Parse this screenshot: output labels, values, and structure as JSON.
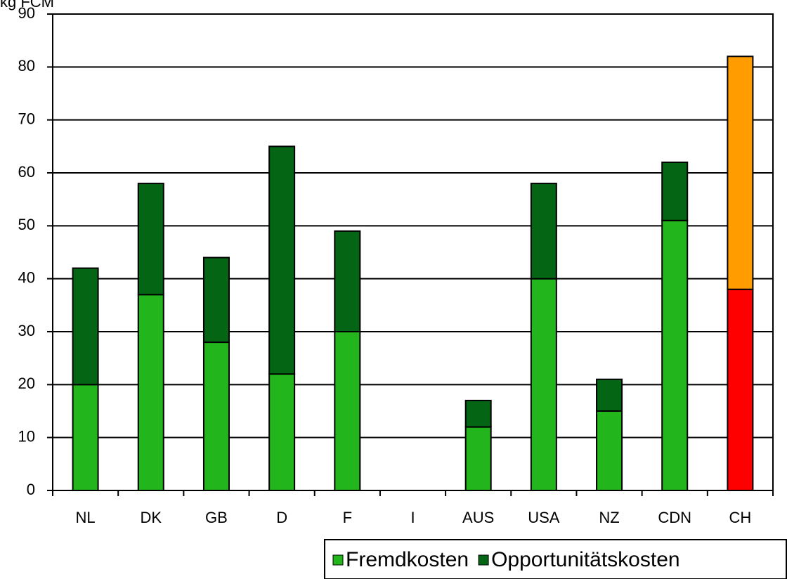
{
  "chart_data": {
    "type": "stacked_bar",
    "y_label": "kg FCM",
    "categories": [
      "NL",
      "DK",
      "GB",
      "D",
      "F",
      "I",
      "AUS",
      "USA",
      "NZ",
      "CDN",
      "CH"
    ],
    "series": [
      {
        "name": "Fremdkosten",
        "color": "#22b51c",
        "colors": [
          "#22b51c",
          "#22b51c",
          "#22b51c",
          "#22b51c",
          "#22b51c",
          "#22b51c",
          "#22b51c",
          "#22b51c",
          "#22b51c",
          "#22b51c",
          "#ff0000"
        ],
        "values": [
          20,
          37,
          28,
          22,
          30,
          null,
          12,
          40,
          15,
          51,
          38
        ]
      },
      {
        "name": "Opportunitätskosten",
        "color": "#046614",
        "colors": [
          "#046614",
          "#046614",
          "#046614",
          "#046614",
          "#046614",
          "#046614",
          "#046614",
          "#046614",
          "#046614",
          "#046614",
          "#ff9c00"
        ],
        "values": [
          22,
          21,
          16,
          43,
          19,
          null,
          5,
          18,
          6,
          11,
          44
        ]
      }
    ],
    "ylim": [
      0,
      90
    ],
    "yticks": [
      0,
      10,
      20,
      30,
      40,
      50,
      60,
      70,
      80,
      90
    ],
    "grid": true
  }
}
